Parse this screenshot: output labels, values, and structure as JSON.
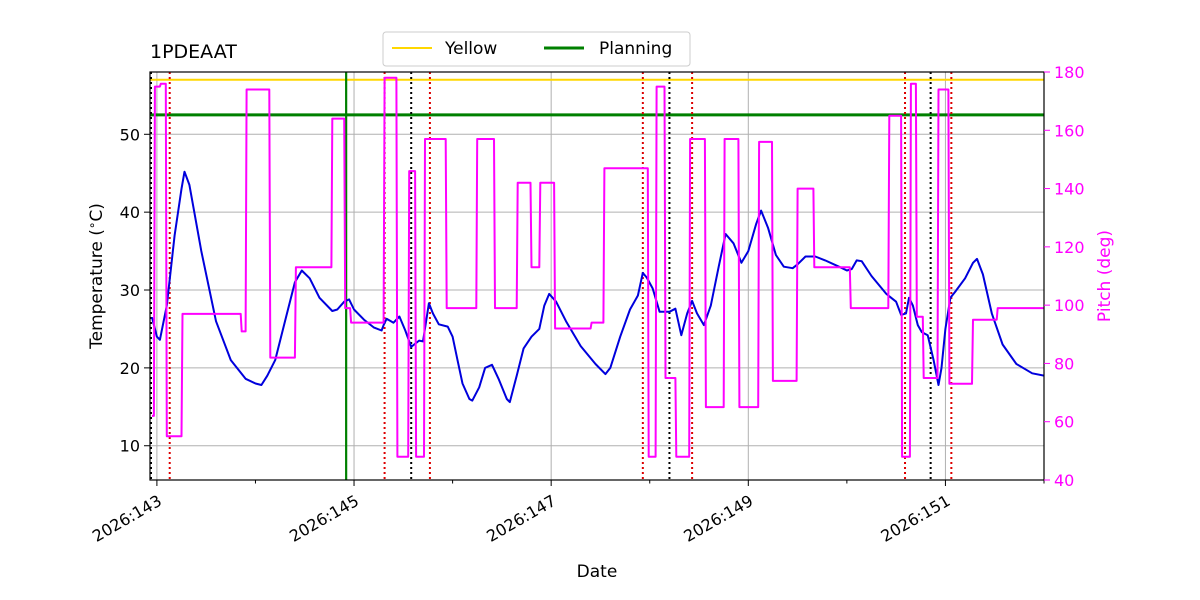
{
  "chart_data": {
    "type": "line",
    "title": "1PDEAAT",
    "xlabel": "Date",
    "ylabel_left": "Temperature ($^\\circ$C)",
    "ylabel_right": "Pitch (deg)",
    "xlim": [
      142.93,
      152.0
    ],
    "ylim_left": [
      5.6,
      58.0
    ],
    "ylim_right": [
      40,
      180
    ],
    "x_major_ticks": [
      {
        "value": 143,
        "label": "2026:143"
      },
      {
        "value": 145,
        "label": "2026:145"
      },
      {
        "value": 147,
        "label": "2026:147"
      },
      {
        "value": 149,
        "label": "2026:149"
      },
      {
        "value": 151,
        "label": "2026:151"
      }
    ],
    "x_minor_ticks": [
      144,
      146,
      148,
      150,
      152
    ],
    "y_left_ticks": [
      10,
      20,
      30,
      40,
      50
    ],
    "y_right_ticks": [
      40,
      60,
      80,
      100,
      120,
      140,
      160,
      180
    ],
    "grid": true,
    "legend_position": "top-center",
    "legend": [
      {
        "label": "Yellow",
        "color": "#ffd700"
      },
      {
        "label": "Planning",
        "color": "#008000"
      }
    ],
    "limits": [
      {
        "name": "Yellow",
        "axis": "left",
        "value": 57.0,
        "color": "#ffd700",
        "width": 2
      },
      {
        "name": "Planning",
        "axis": "left",
        "value": 52.5,
        "color": "#008000",
        "width": 3
      }
    ],
    "planning_vline": {
      "x": 144.92,
      "color": "#008000"
    },
    "vlines_black": [
      142.94,
      145.58,
      148.2,
      150.85
    ],
    "vlines_red": [
      143.13,
      145.31,
      145.77,
      147.93,
      148.43,
      150.59,
      151.06
    ],
    "series": [
      {
        "axis": "left",
        "color": "#0000dd",
        "points": [
          [
            142.95,
            26.5
          ],
          [
            143.0,
            24.0
          ],
          [
            143.03,
            23.6
          ],
          [
            143.1,
            28.0
          ],
          [
            143.18,
            37.0
          ],
          [
            143.25,
            43.0
          ],
          [
            143.28,
            45.2
          ],
          [
            143.33,
            43.5
          ],
          [
            143.45,
            35.0
          ],
          [
            143.6,
            26.0
          ],
          [
            143.75,
            21.0
          ],
          [
            143.9,
            18.6
          ],
          [
            144.0,
            18.0
          ],
          [
            144.06,
            17.8
          ],
          [
            144.12,
            19.0
          ],
          [
            144.2,
            21.0
          ],
          [
            144.3,
            26.0
          ],
          [
            144.4,
            31.0
          ],
          [
            144.47,
            32.5
          ],
          [
            144.55,
            31.5
          ],
          [
            144.65,
            29.0
          ],
          [
            144.78,
            27.3
          ],
          [
            144.83,
            27.5
          ],
          [
            144.9,
            28.5
          ],
          [
            144.95,
            28.8
          ],
          [
            145.0,
            27.5
          ],
          [
            145.1,
            26.2
          ],
          [
            145.2,
            25.2
          ],
          [
            145.28,
            24.8
          ],
          [
            145.3,
            25.5
          ],
          [
            145.33,
            26.3
          ],
          [
            145.4,
            25.8
          ],
          [
            145.46,
            26.6
          ],
          [
            145.52,
            24.8
          ],
          [
            145.58,
            22.7
          ],
          [
            145.66,
            23.5
          ],
          [
            145.7,
            23.4
          ],
          [
            145.76,
            28.3
          ],
          [
            145.8,
            27.0
          ],
          [
            145.86,
            25.6
          ],
          [
            145.95,
            25.3
          ],
          [
            146.0,
            24.0
          ],
          [
            146.05,
            21.0
          ],
          [
            146.1,
            18.0
          ],
          [
            146.17,
            16.0
          ],
          [
            146.2,
            15.8
          ],
          [
            146.27,
            17.5
          ],
          [
            146.33,
            20.0
          ],
          [
            146.4,
            20.4
          ],
          [
            146.47,
            18.5
          ],
          [
            146.55,
            16.0
          ],
          [
            146.58,
            15.6
          ],
          [
            146.65,
            19.0
          ],
          [
            146.72,
            22.5
          ],
          [
            146.8,
            24.0
          ],
          [
            146.88,
            25.0
          ],
          [
            146.93,
            28.0
          ],
          [
            146.98,
            29.5
          ],
          [
            147.05,
            28.5
          ],
          [
            147.15,
            26.0
          ],
          [
            147.3,
            22.8
          ],
          [
            147.45,
            20.5
          ],
          [
            147.55,
            19.2
          ],
          [
            147.6,
            20.0
          ],
          [
            147.7,
            24.0
          ],
          [
            147.8,
            27.5
          ],
          [
            147.88,
            29.3
          ],
          [
            147.93,
            32.2
          ],
          [
            147.97,
            31.6
          ],
          [
            148.03,
            30.2
          ],
          [
            148.1,
            27.2
          ],
          [
            148.2,
            27.2
          ],
          [
            148.26,
            27.6
          ],
          [
            148.32,
            24.2
          ],
          [
            148.38,
            27.0
          ],
          [
            148.43,
            28.6
          ],
          [
            148.48,
            27.0
          ],
          [
            148.55,
            25.5
          ],
          [
            148.62,
            28.0
          ],
          [
            148.7,
            33.0
          ],
          [
            148.77,
            37.2
          ],
          [
            148.85,
            36.0
          ],
          [
            148.93,
            33.5
          ],
          [
            149.0,
            35.0
          ],
          [
            149.08,
            38.5
          ],
          [
            149.13,
            40.2
          ],
          [
            149.2,
            38.0
          ],
          [
            149.28,
            34.5
          ],
          [
            149.36,
            33.0
          ],
          [
            149.45,
            32.8
          ],
          [
            149.5,
            33.3
          ],
          [
            149.58,
            34.3
          ],
          [
            149.68,
            34.3
          ],
          [
            149.78,
            33.8
          ],
          [
            149.92,
            33.0
          ],
          [
            150.0,
            32.5
          ],
          [
            150.05,
            32.7
          ],
          [
            150.1,
            33.8
          ],
          [
            150.15,
            33.7
          ],
          [
            150.25,
            31.8
          ],
          [
            150.4,
            29.5
          ],
          [
            150.5,
            28.5
          ],
          [
            150.55,
            26.8
          ],
          [
            150.6,
            27.0
          ],
          [
            150.63,
            29.0
          ],
          [
            150.67,
            28.0
          ],
          [
            150.72,
            25.5
          ],
          [
            150.76,
            24.6
          ],
          [
            150.82,
            24.2
          ],
          [
            150.88,
            21.0
          ],
          [
            150.93,
            17.8
          ],
          [
            150.96,
            20.0
          ],
          [
            151.0,
            25.0
          ],
          [
            151.05,
            29.0
          ],
          [
            151.1,
            29.8
          ],
          [
            151.2,
            31.5
          ],
          [
            151.28,
            33.5
          ],
          [
            151.32,
            34.0
          ],
          [
            151.38,
            32.0
          ],
          [
            151.47,
            27.0
          ],
          [
            151.58,
            23.0
          ],
          [
            151.72,
            20.5
          ],
          [
            151.88,
            19.3
          ],
          [
            152.0,
            19.0
          ]
        ]
      },
      {
        "axis": "right",
        "color": "#ff00ff",
        "points": [
          [
            142.95,
            62
          ],
          [
            142.97,
            62
          ],
          [
            142.98,
            175
          ],
          [
            143.03,
            175
          ],
          [
            143.04,
            176
          ],
          [
            143.09,
            176
          ],
          [
            143.1,
            55
          ],
          [
            143.25,
            55
          ],
          [
            143.26,
            97
          ],
          [
            143.85,
            97
          ],
          [
            143.86,
            91
          ],
          [
            143.9,
            91
          ],
          [
            143.91,
            174
          ],
          [
            144.14,
            174
          ],
          [
            144.15,
            82
          ],
          [
            144.4,
            82
          ],
          [
            144.41,
            113
          ],
          [
            144.77,
            113
          ],
          [
            144.78,
            164
          ],
          [
            144.9,
            164
          ],
          [
            144.91,
            99
          ],
          [
            144.96,
            99
          ],
          [
            144.97,
            94
          ],
          [
            145.3,
            94
          ],
          [
            145.31,
            178
          ],
          [
            145.43,
            178
          ],
          [
            145.44,
            48
          ],
          [
            145.55,
            48
          ],
          [
            145.56,
            146
          ],
          [
            145.62,
            146
          ],
          [
            145.63,
            48
          ],
          [
            145.71,
            48
          ],
          [
            145.72,
            157
          ],
          [
            145.93,
            157
          ],
          [
            145.94,
            99
          ],
          [
            146.24,
            99
          ],
          [
            146.25,
            157
          ],
          [
            146.42,
            157
          ],
          [
            146.43,
            99
          ],
          [
            146.65,
            99
          ],
          [
            146.66,
            142
          ],
          [
            146.79,
            142
          ],
          [
            146.8,
            113
          ],
          [
            146.88,
            113
          ],
          [
            146.89,
            142
          ],
          [
            147.03,
            142
          ],
          [
            147.04,
            92
          ],
          [
            147.4,
            92
          ],
          [
            147.41,
            94
          ],
          [
            147.53,
            94
          ],
          [
            147.54,
            147
          ],
          [
            147.98,
            147
          ],
          [
            147.99,
            48
          ],
          [
            148.06,
            48
          ],
          [
            148.07,
            175
          ],
          [
            148.15,
            175
          ],
          [
            148.16,
            75
          ],
          [
            148.26,
            75
          ],
          [
            148.27,
            48
          ],
          [
            148.4,
            48
          ],
          [
            148.41,
            157
          ],
          [
            148.56,
            157
          ],
          [
            148.57,
            65
          ],
          [
            148.75,
            65
          ],
          [
            148.76,
            157
          ],
          [
            148.9,
            157
          ],
          [
            148.91,
            65
          ],
          [
            149.1,
            65
          ],
          [
            149.11,
            156
          ],
          [
            149.24,
            156
          ],
          [
            149.25,
            74
          ],
          [
            149.49,
            74
          ],
          [
            149.5,
            140
          ],
          [
            149.66,
            140
          ],
          [
            149.67,
            113
          ],
          [
            150.03,
            113
          ],
          [
            150.04,
            99
          ],
          [
            150.42,
            99
          ],
          [
            150.43,
            165
          ],
          [
            150.55,
            165
          ],
          [
            150.56,
            48
          ],
          [
            150.64,
            48
          ],
          [
            150.65,
            176
          ],
          [
            150.7,
            176
          ],
          [
            150.71,
            96
          ],
          [
            150.77,
            96
          ],
          [
            150.78,
            75
          ],
          [
            150.92,
            75
          ],
          [
            150.93,
            174
          ],
          [
            151.03,
            174
          ],
          [
            151.04,
            73
          ],
          [
            151.27,
            73
          ],
          [
            151.28,
            95
          ],
          [
            151.52,
            95
          ],
          [
            151.53,
            99
          ],
          [
            152.0,
            99
          ]
        ]
      }
    ]
  }
}
